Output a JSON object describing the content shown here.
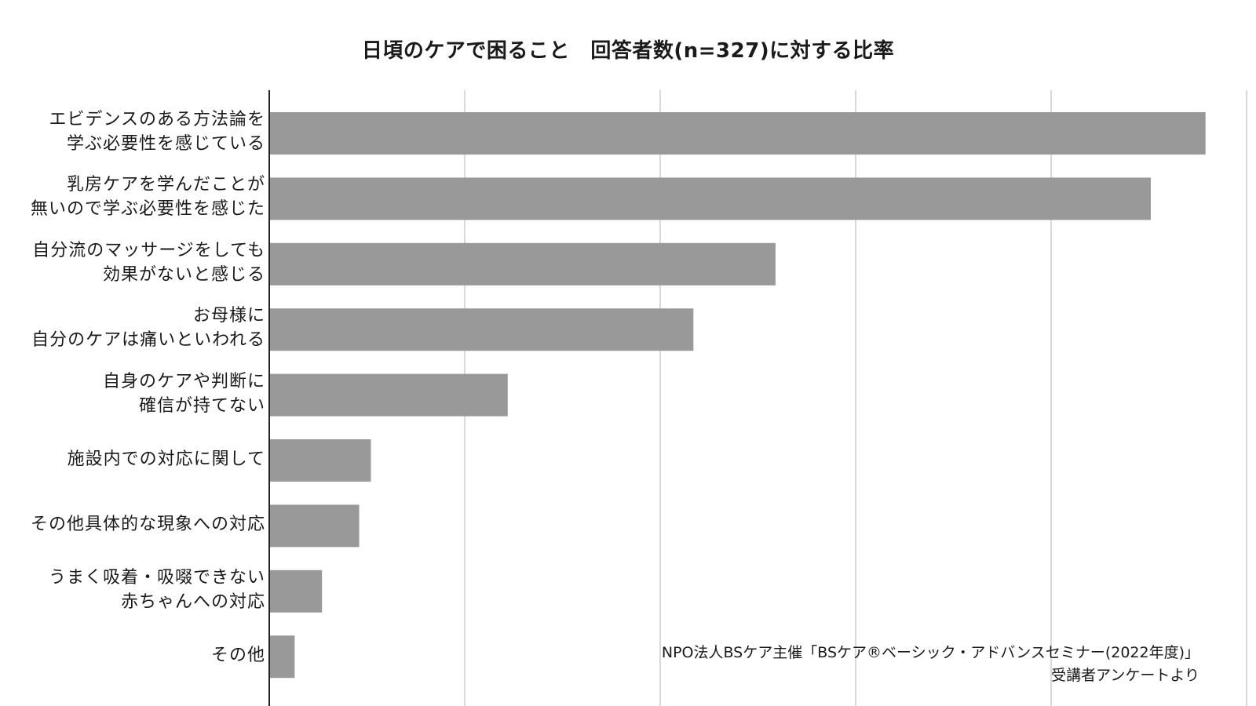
{
  "chart_data": {
    "type": "bar",
    "orientation": "horizontal",
    "title": "日頃のケアで困ること　回答者数(n=327)に対する比率",
    "categories": [
      [
        "エビデンスのある方法論を",
        "学ぶ必要性を感じている"
      ],
      [
        "乳房ケアを学んだことが",
        "無いので学ぶ必要性を感じた"
      ],
      [
        "自分流のマッサージをしても",
        "効果がないと感じる"
      ],
      [
        "お母様に",
        "自分のケアは痛いといわれる"
      ],
      [
        "自身のケアや判断に",
        "確信が持てない"
      ],
      [
        "施設内での対応に関して"
      ],
      [
        "その他具体的な現象への対応"
      ],
      [
        "うまく吸着・吸啜できない",
        "赤ちゃんへの対応"
      ],
      [
        "その他"
      ]
    ],
    "values": [
      0.479,
      0.451,
      0.259,
      0.217,
      0.122,
      0.052,
      0.046,
      0.027,
      0.013
    ],
    "xlim": [
      0,
      0.5
    ],
    "grid": true,
    "bar_color": "#999999",
    "grid_color": "#d9d9d9",
    "note": [
      "NPO法人BSケア主催「BSケア®ベーシック・アドバンスセミナー(2022年度)」",
      "受講者アンケートより"
    ]
  }
}
